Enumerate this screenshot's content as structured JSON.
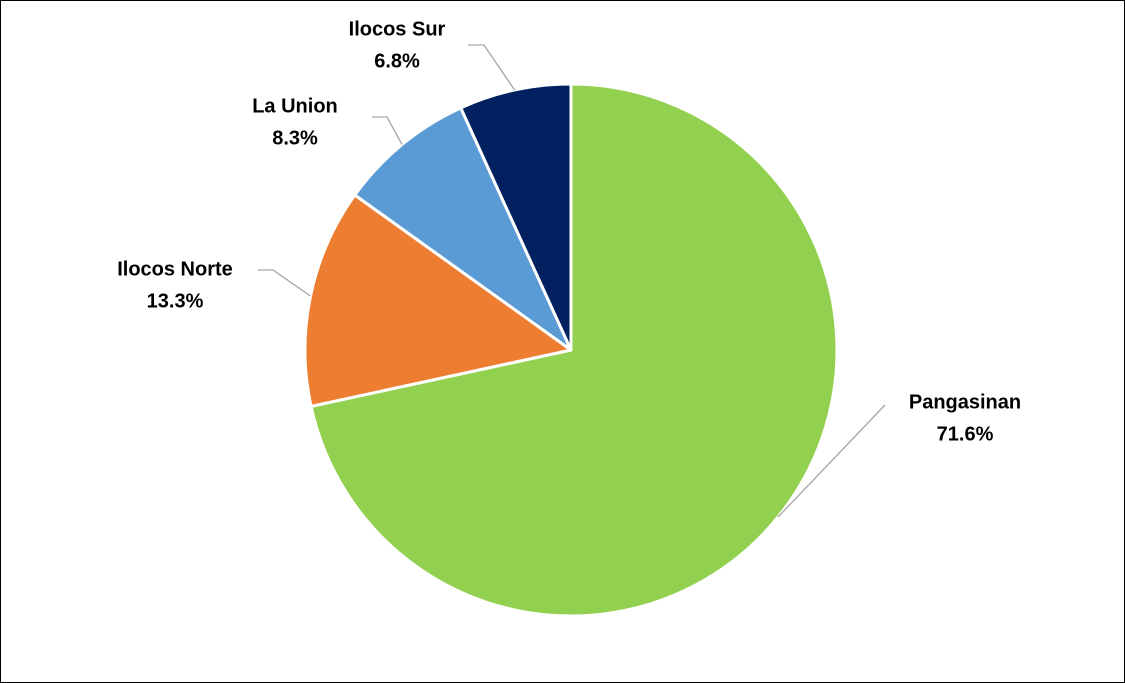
{
  "chart_data": {
    "type": "pie",
    "categories": [
      "Pangasinan",
      "Ilocos Norte",
      "La Union",
      "Ilocos Sur"
    ],
    "values": [
      71.6,
      13.3,
      8.3,
      6.8
    ],
    "value_labels": [
      "71.6%",
      "13.3%",
      "8.3%",
      "6.8%"
    ],
    "colors": [
      "#92d050",
      "#ed7d31",
      "#5b9bd5",
      "#002060"
    ]
  }
}
